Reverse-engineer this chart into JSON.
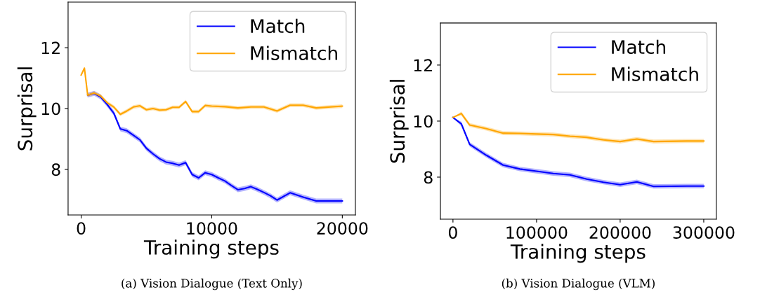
{
  "chart_data": [
    {
      "type": "line",
      "xlabel": "Training steps",
      "ylabel": "Surprisal",
      "xlim": [
        -1000,
        21000
      ],
      "xticks": [
        0,
        10000,
        20000
      ],
      "ylim": [
        6.5,
        13.5
      ],
      "yticks": [
        8,
        10,
        12
      ],
      "grid": false,
      "legend": "top right",
      "annotations": [
        "(a) Vision Dialogue (Text Only)"
      ],
      "series": [
        {
          "name": "Match",
          "color": "#0000ff",
          "x": [
            0,
            250,
            500,
            1000,
            1500,
            2000,
            2500,
            3000,
            3500,
            4000,
            4500,
            5000,
            5500,
            6000,
            6500,
            7000,
            7500,
            8000,
            8500,
            9000,
            9500,
            10000,
            10500,
            11000,
            11500,
            12000,
            12500,
            13000,
            13500,
            14000,
            14500,
            15000,
            16000,
            17000,
            18000,
            20000
          ],
          "values": [
            null,
            null,
            10.44,
            10.5,
            10.38,
            10.13,
            9.85,
            9.33,
            9.27,
            9.12,
            8.97,
            8.69,
            8.51,
            8.35,
            8.24,
            8.2,
            8.14,
            8.22,
            7.83,
            7.72,
            7.89,
            7.83,
            7.72,
            7.62,
            7.47,
            7.33,
            7.37,
            7.43,
            7.34,
            7.24,
            7.13,
            6.99,
            7.23,
            7.09,
            6.96,
            6.96
          ],
          "lower": [
            11.1,
            11.33,
            10.36,
            10.42,
            10.3,
            10.05,
            9.77,
            9.25,
            9.19,
            9.04,
            8.89,
            8.61,
            8.43,
            8.27,
            8.16,
            8.12,
            8.06,
            8.14,
            7.75,
            7.64,
            7.81,
            7.75,
            7.64,
            7.54,
            7.39,
            7.25,
            7.29,
            7.35,
            7.26,
            7.16,
            7.05,
            6.91,
            7.15,
            7.01,
            6.88,
            6.88
          ],
          "upper": [
            11.1,
            11.33,
            10.52,
            10.58,
            10.46,
            10.21,
            9.93,
            9.41,
            9.35,
            9.2,
            9.05,
            8.77,
            8.59,
            8.43,
            8.32,
            8.28,
            8.22,
            8.3,
            7.91,
            7.8,
            7.97,
            7.91,
            7.8,
            7.7,
            7.55,
            7.41,
            7.45,
            7.51,
            7.42,
            7.32,
            7.21,
            7.07,
            7.31,
            7.17,
            7.04,
            7.04
          ]
        },
        {
          "name": "Mismatch",
          "color": "#ffa500",
          "x": [
            0,
            250,
            500,
            1000,
            1500,
            2000,
            2500,
            3000,
            3500,
            4000,
            4500,
            5000,
            5500,
            6000,
            6500,
            7000,
            7500,
            8000,
            8500,
            9000,
            9500,
            10000,
            11000,
            12000,
            13000,
            14000,
            15000,
            16000,
            17000,
            18000,
            20000
          ],
          "values": [
            11.1,
            11.33,
            10.44,
            10.51,
            10.41,
            10.19,
            10.05,
            9.81,
            9.92,
            10.05,
            10.09,
            9.96,
            10.0,
            9.95,
            9.96,
            10.04,
            10.04,
            10.23,
            9.9,
            9.9,
            10.1,
            10.08,
            10.06,
            10.02,
            10.05,
            10.05,
            9.92,
            10.11,
            10.11,
            10.02,
            10.08
          ],
          "lower": [
            11.1,
            11.33,
            10.38,
            10.45,
            10.35,
            10.13,
            9.99,
            9.75,
            9.86,
            9.99,
            10.03,
            9.9,
            9.94,
            9.89,
            9.9,
            9.98,
            9.98,
            10.17,
            9.84,
            9.84,
            10.04,
            10.02,
            10.0,
            9.96,
            9.99,
            9.99,
            9.86,
            10.05,
            10.05,
            9.96,
            10.02
          ],
          "upper": [
            11.1,
            11.33,
            10.5,
            10.57,
            10.47,
            10.25,
            10.11,
            9.87,
            9.98,
            10.11,
            10.15,
            10.02,
            10.06,
            10.01,
            10.02,
            10.1,
            10.1,
            10.29,
            9.96,
            9.96,
            10.16,
            10.14,
            10.12,
            10.08,
            10.11,
            10.11,
            9.98,
            10.17,
            10.17,
            10.08,
            10.14
          ]
        }
      ]
    },
    {
      "type": "line",
      "xlabel": "Training steps",
      "ylabel": "Surprisal",
      "xlim": [
        -15000,
        315000
      ],
      "xticks": [
        0,
        100000,
        200000,
        300000
      ],
      "ylim": [
        6.5,
        13.5
      ],
      "yticks": [
        8,
        10,
        12
      ],
      "grid": false,
      "legend": "top right",
      "annotations": [
        "(b) Vision Dialogue (VLM)"
      ],
      "series": [
        {
          "name": "Match",
          "color": "#0000ff",
          "x": [
            0,
            10000,
            20000,
            40000,
            60000,
            80000,
            100000,
            120000,
            140000,
            160000,
            180000,
            200000,
            220000,
            240000,
            280000,
            300000
          ],
          "values": [
            10.13,
            9.9,
            9.17,
            8.78,
            8.43,
            8.29,
            8.21,
            8.13,
            8.08,
            7.93,
            7.82,
            7.73,
            7.83,
            7.67,
            7.68,
            7.68
          ],
          "lower": [
            10.13,
            9.82,
            9.09,
            8.7,
            8.35,
            8.21,
            8.13,
            8.05,
            8.0,
            7.85,
            7.74,
            7.65,
            7.75,
            7.59,
            7.6,
            7.6
          ],
          "upper": [
            10.13,
            9.98,
            9.25,
            8.86,
            8.51,
            8.37,
            8.29,
            8.21,
            8.16,
            8.01,
            7.9,
            7.81,
            7.91,
            7.75,
            7.76,
            7.76
          ]
        },
        {
          "name": "Mismatch",
          "color": "#ffa500",
          "x": [
            0,
            10000,
            20000,
            40000,
            60000,
            80000,
            100000,
            120000,
            140000,
            160000,
            180000,
            200000,
            220000,
            240000,
            280000,
            300000
          ],
          "values": [
            10.13,
            10.27,
            9.86,
            9.73,
            9.57,
            9.56,
            9.54,
            9.52,
            9.46,
            9.42,
            9.33,
            9.27,
            9.36,
            9.27,
            9.29,
            9.29
          ],
          "lower": [
            10.13,
            10.2,
            9.79,
            9.66,
            9.5,
            9.49,
            9.47,
            9.45,
            9.39,
            9.35,
            9.26,
            9.2,
            9.29,
            9.2,
            9.22,
            9.22
          ],
          "upper": [
            10.13,
            10.34,
            9.93,
            9.8,
            9.64,
            9.63,
            9.61,
            9.59,
            9.53,
            9.49,
            9.4,
            9.34,
            9.43,
            9.34,
            9.36,
            9.36
          ]
        }
      ]
    }
  ]
}
